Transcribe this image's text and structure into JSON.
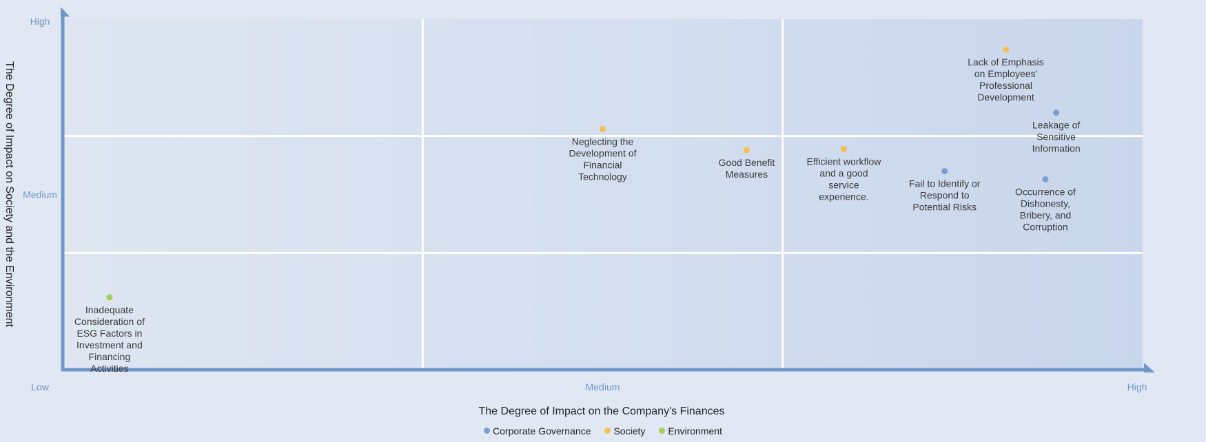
{
  "chart_data": {
    "type": "scatter",
    "title": "",
    "xlabel": "The Degree of Impact on the Company's Finances",
    "ylabel": "The Degree of Impact on Society and the Environment",
    "x_ticks": [
      "Low",
      "Medium",
      "High"
    ],
    "y_ticks": [
      "Medium",
      "High"
    ],
    "xlim": [
      0,
      3
    ],
    "ylim": [
      0,
      3
    ],
    "grid": true,
    "legend_position": "bottom",
    "series": [
      {
        "name": "Corporate Governance",
        "color": "#7a9fcf",
        "points": [
          {
            "x": 2.76,
            "y": 2.2,
            "label": "Leakage of Sensitive Information"
          },
          {
            "x": 2.45,
            "y": 1.7,
            "label": "Fail to Identify or Respond to Potential Risks"
          },
          {
            "x": 2.73,
            "y": 1.63,
            "label": "Occurrence of Dishonesty, Bribery, and Corruption"
          }
        ]
      },
      {
        "name": "Society",
        "color": "#f5c04f",
        "points": [
          {
            "x": 2.62,
            "y": 2.74,
            "label": "Lack of Emphasis on Employees' Professional Development"
          },
          {
            "x": 1.5,
            "y": 2.06,
            "label": "Neglecting the Development of Financial Technology"
          },
          {
            "x": 1.9,
            "y": 1.88,
            "label": "Good Benefit Measures"
          },
          {
            "x": 2.17,
            "y": 1.89,
            "label": "Efficient workflow and a good service experience."
          }
        ]
      },
      {
        "name": "Environment",
        "color": "#a8cd5b",
        "points": [
          {
            "x": 0.13,
            "y": 0.62,
            "label": "Inadequate Consideration of ESG Factors in Investment and Financing Activities"
          }
        ]
      }
    ]
  }
}
